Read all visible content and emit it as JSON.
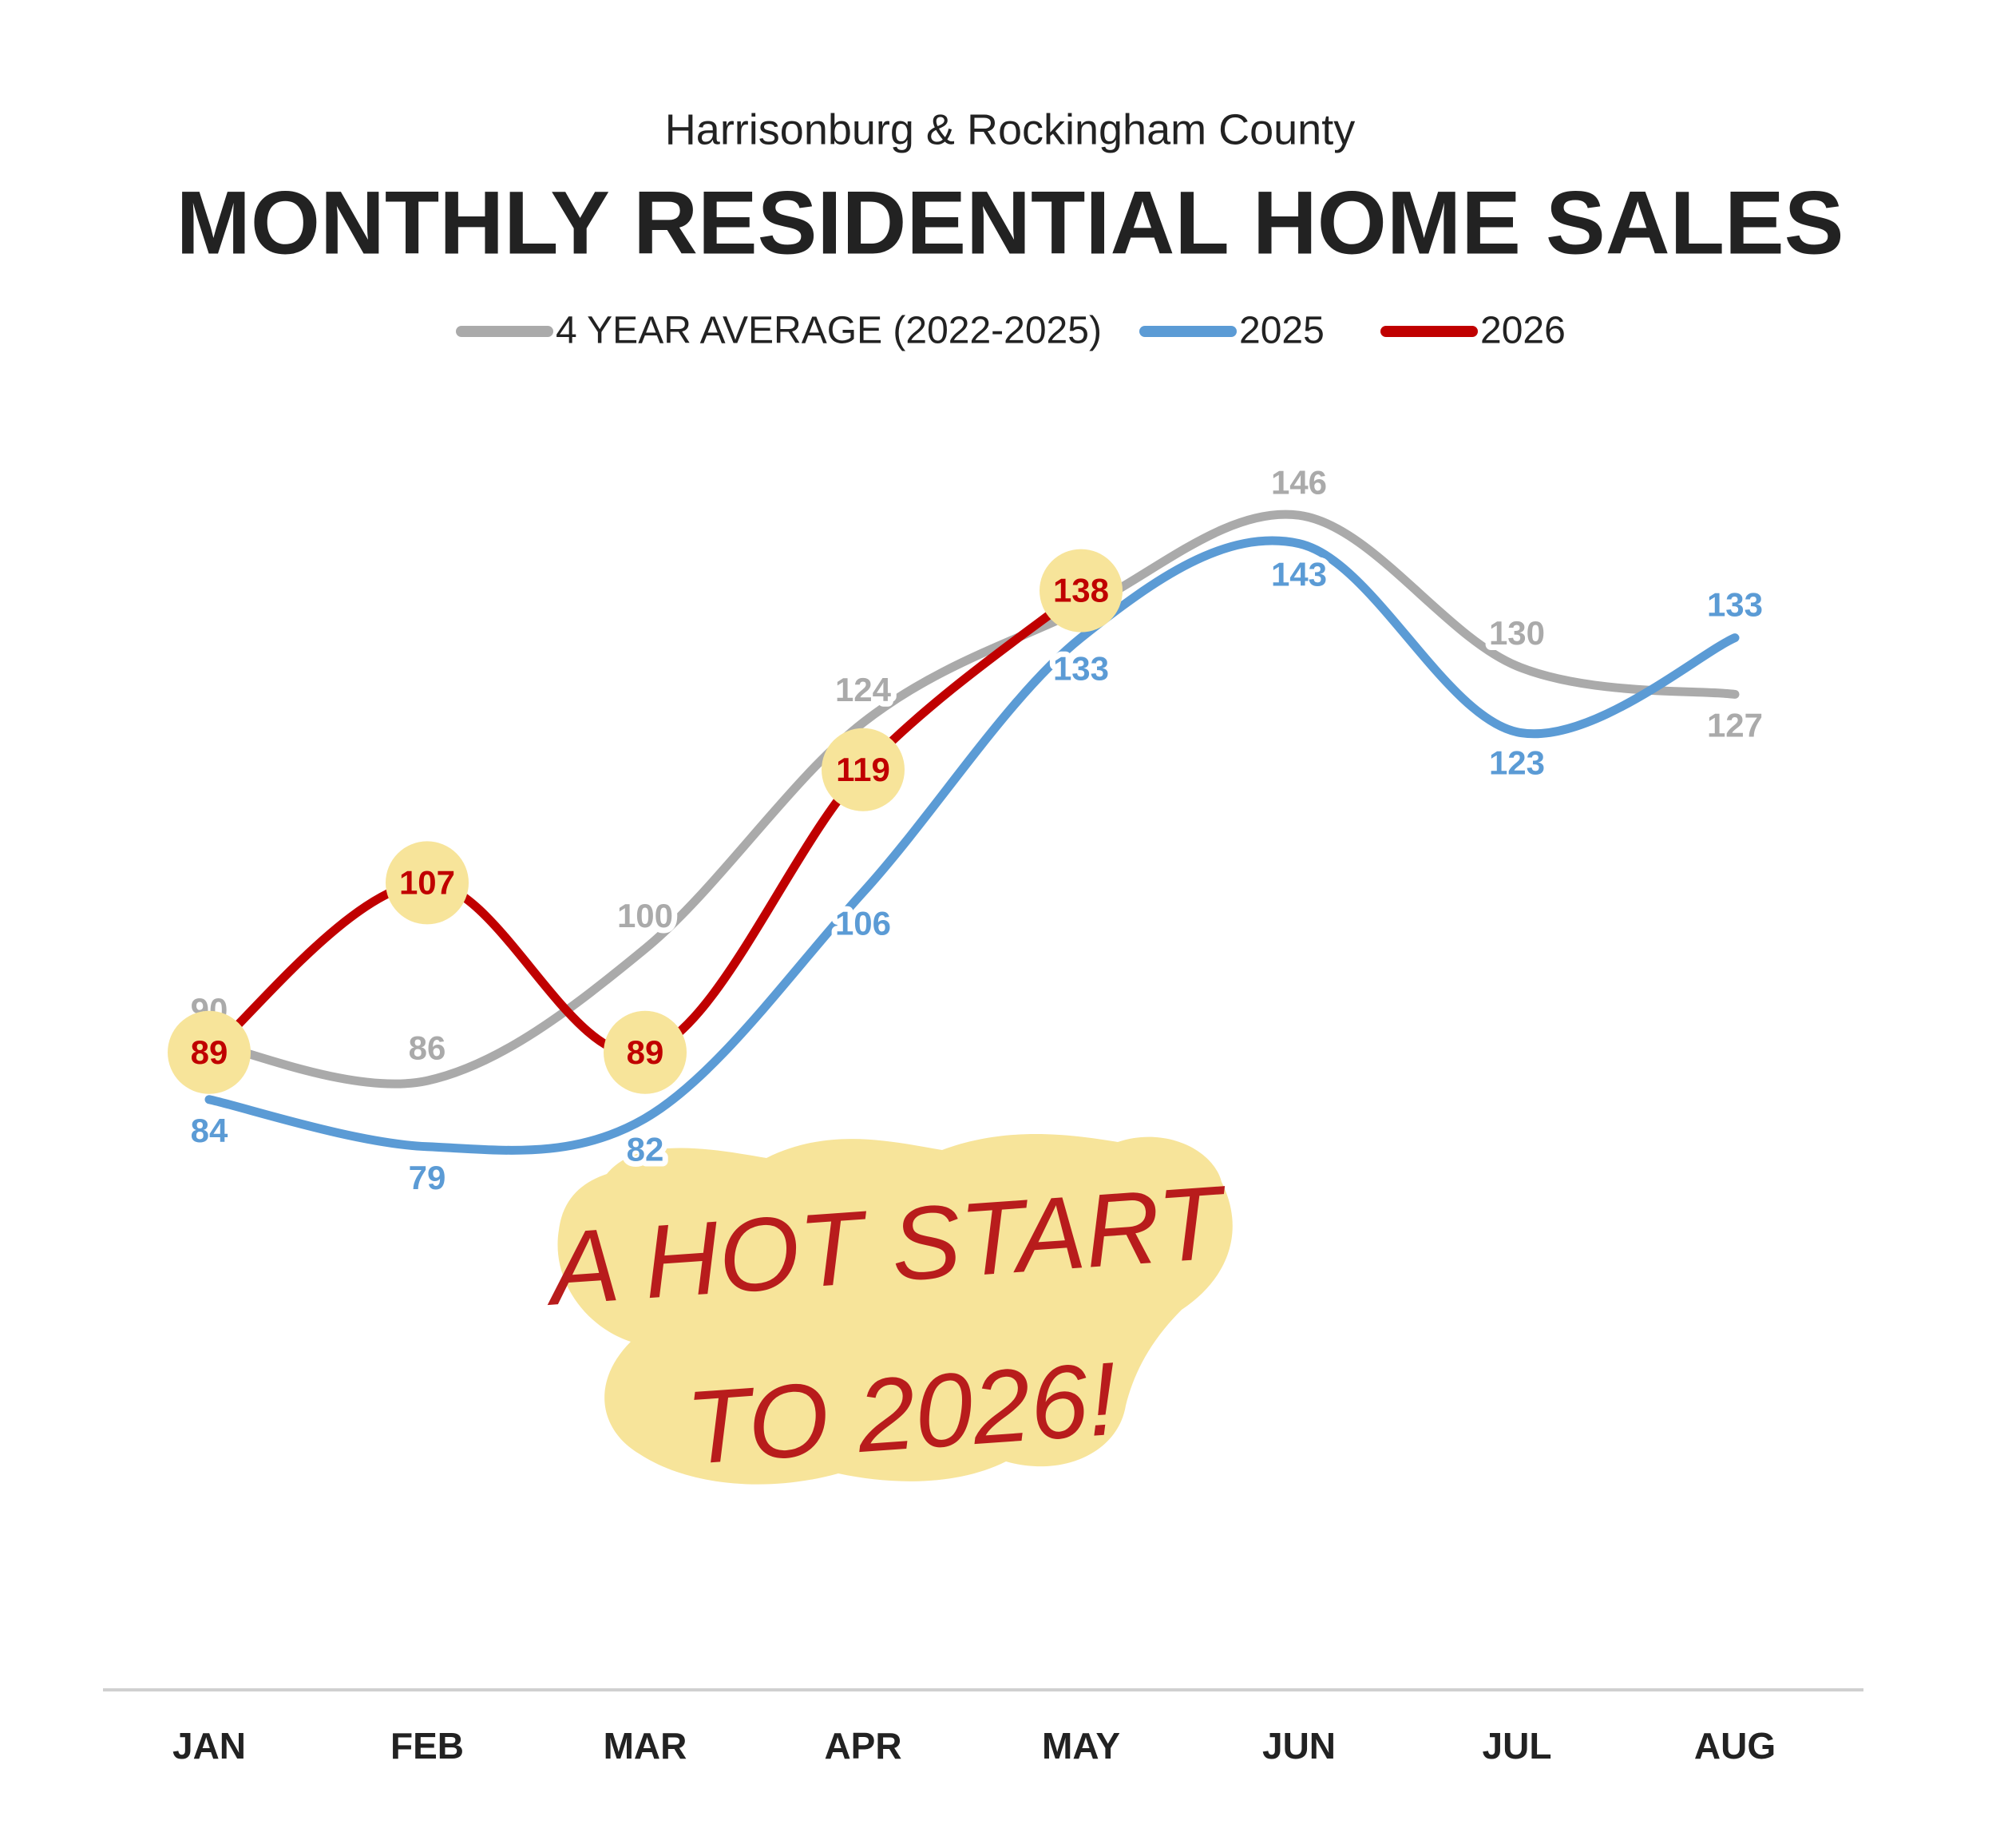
{
  "chart_data": {
    "type": "line",
    "subtitle": "Harrisonburg & Rockingham County",
    "title": "MONTHLY RESIDENTIAL HOME SALES",
    "categories": [
      "JAN",
      "FEB",
      "MAR",
      "APR",
      "MAY",
      "JUN",
      "JUL",
      "AUG"
    ],
    "series": [
      {
        "name": "4 YEAR AVERAGE (2022-2025)",
        "color": "#aaaaaa",
        "values": [
          90,
          86,
          100,
          124,
          136,
          146,
          130,
          127
        ]
      },
      {
        "name": "2025",
        "color": "#5b9bd5",
        "values": [
          84,
          79,
          82,
          106,
          133,
          143,
          123,
          133
        ]
      },
      {
        "name": "2026",
        "color": "#c00000",
        "values": [
          89,
          107,
          89,
          119,
          138,
          null,
          null,
          null
        ]
      }
    ],
    "highlight_color": "#f7e49a",
    "annotation": [
      "A HOT START",
      "TO 2026!"
    ]
  }
}
